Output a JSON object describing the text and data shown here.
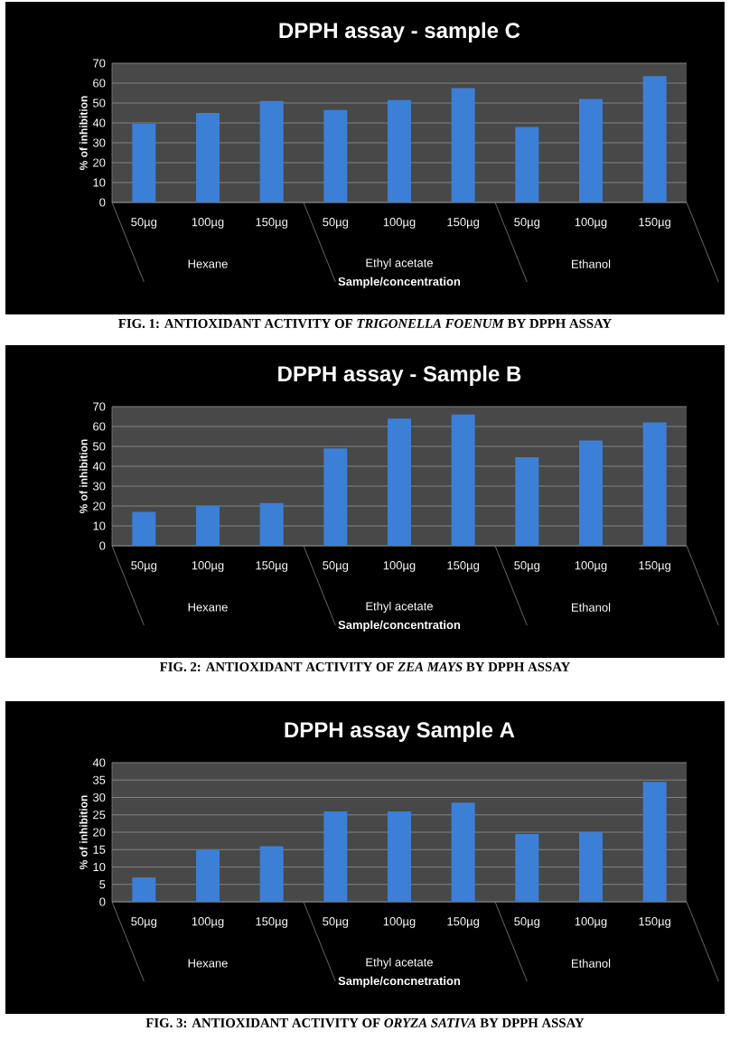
{
  "chart_data": [
    {
      "type": "bar",
      "title": "DPPH assay - sample C",
      "xlabel": "Sample/concentration",
      "ylabel": "% of inhibition",
      "categories": [
        "50µg",
        "100µg",
        "150µg",
        "50µg",
        "100µg",
        "150µg",
        "50µg",
        "100µg",
        "150µg"
      ],
      "values": [
        39.5,
        45,
        51,
        46.5,
        51.5,
        57.5,
        38,
        52,
        63.5
      ],
      "color": "#3c7fd6",
      "ylim": [
        0,
        70
      ],
      "yticks": [
        0,
        10,
        20,
        30,
        40,
        50,
        60,
        70
      ],
      "grid": "y",
      "annotations": [
        "Hexane",
        "Ethyl acetate",
        "Ethanol",
        "FIG. 1: ANTIOXIDANT ACTIVITY OF *TRIGONELLA FOENUM* BY DPPH ASSAY"
      ]
    },
    {
      "type": "bar",
      "title": "DPPH assay - Sample B",
      "xlabel": "Sample/concentration",
      "ylabel": "% of inhibition",
      "categories": [
        "50µg",
        "100µg",
        "150µg",
        "50µg",
        "100µg",
        "150µg",
        "50µg",
        "100µg",
        "150µg"
      ],
      "values": [
        17,
        20,
        21.5,
        49,
        64,
        66,
        44.5,
        53,
        62
      ],
      "color": "#3c7fd6",
      "ylim": [
        0,
        70
      ],
      "yticks": [
        0,
        10,
        20,
        30,
        40,
        50,
        60,
        70
      ],
      "grid": "y",
      "annotations": [
        "Hexane",
        "Ethyl acetate",
        "Ethanol",
        "FIG. 2: ANTIOXIDANT ACTIVITY OF *ZEA MAYS* BY DPPH ASSAY"
      ]
    },
    {
      "type": "bar",
      "title": "DPPH assay Sample A",
      "xlabel": "Sample/concnetration",
      "ylabel": "% of inhibition",
      "categories": [
        "50µg",
        "100µg",
        "150µg",
        "50µg",
        "100µg",
        "150µg",
        "50µg",
        "100µg",
        "150µg"
      ],
      "values": [
        7,
        15,
        16,
        26,
        26,
        28.5,
        19.5,
        20,
        34.5
      ],
      "color": "#3c7fd6",
      "ylim": [
        0,
        40
      ],
      "yticks": [
        0,
        5,
        10,
        15,
        20,
        25,
        30,
        35,
        40
      ],
      "grid": "y",
      "annotations": [
        "Hexane",
        "Ethyl acetate",
        "Ethanol",
        "FIG. 3: ANTIOXIDANT ACTIVITY OF *ORYZA SATIVA* BY DPPH ASSAY"
      ]
    }
  ]
}
